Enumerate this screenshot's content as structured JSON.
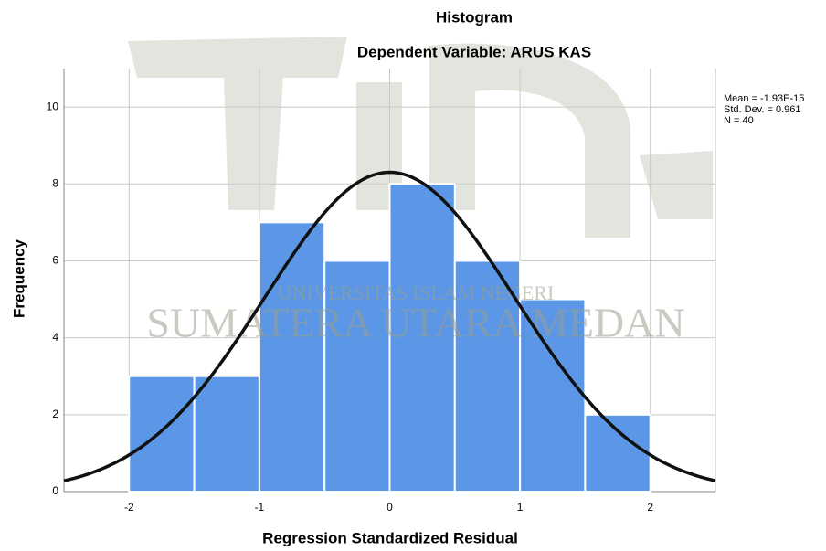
{
  "chart_data": {
    "type": "histogram",
    "title": "Histogram",
    "subtitle": "Dependent Variable: ARUS KAS",
    "x_label": "Regression Standardized Residual",
    "y_label": "Frequency",
    "bins": [
      -2,
      -1.5,
      -1,
      -0.5,
      0,
      0.5,
      1,
      1.5,
      2
    ],
    "values": [
      3,
      3,
      7,
      6,
      8,
      6,
      5,
      2
    ],
    "color": "#5b97e6",
    "xlim": [
      -2.5,
      2.5
    ],
    "xticks": [
      -2,
      -1,
      0,
      1,
      2
    ],
    "ylim": [
      0,
      11
    ],
    "yticks": [
      0,
      2,
      4,
      6,
      8,
      10
    ],
    "grid": true,
    "stats": {
      "mean": -1.93e-15,
      "std_dev": 0.961,
      "n": 40,
      "labels": [
        "Mean = -1.93E-15",
        "Std. Dev. = 0.961",
        "N = 40"
      ]
    },
    "watermark": [
      "UNIVERSITAS ISLAM NEGERI",
      "SUMATERA UTARA MEDAN"
    ]
  }
}
